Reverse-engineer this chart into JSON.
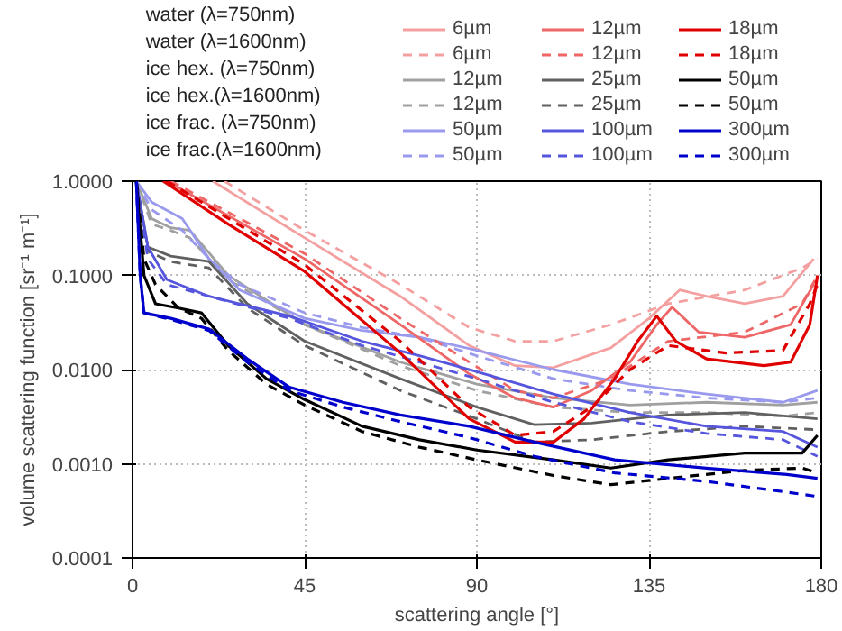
{
  "chart_data": {
    "type": "line",
    "xlabel": "scattering angle [°]",
    "ylabel": "volume scattering function [sr⁻¹ m⁻¹]",
    "log": "y",
    "xlim": [
      0,
      180
    ],
    "ylim": [
      0.0001,
      1.0
    ],
    "xticks": [
      0,
      45,
      90,
      135,
      180
    ],
    "yticks": [
      {
        "value": 0.0001,
        "label": "0.0001"
      },
      {
        "value": 0.001,
        "label": "0.0010"
      },
      {
        "value": 0.01,
        "label": "0.0100"
      },
      {
        "value": 0.1,
        "label": "0.1000"
      },
      {
        "value": 1.0,
        "label": "1.0000"
      }
    ],
    "grid": true,
    "legend": "top",
    "marker": "none",
    "annotations": [
      "water (λ=750nm)",
      "water (λ=1600nm)",
      "ice hex. (λ=750nm)",
      "ice hex.(λ=1600nm)",
      "ice frac. (λ=750nm)",
      "ice frac.(λ=1600nm)"
    ],
    "series": [
      {
        "name": "6µm",
        "color": "#f4a0a0",
        "line_style": "solid",
        "x": [
          21,
          45,
          70,
          88,
          100,
          110,
          125,
          135,
          143,
          150,
          160,
          170,
          178
        ],
        "values": [
          1.0,
          0.25,
          0.06,
          0.018,
          0.011,
          0.0105,
          0.017,
          0.035,
          0.07,
          0.06,
          0.05,
          0.06,
          0.15
        ]
      },
      {
        "name": "6µm",
        "color": "#f4a0a0",
        "line_style": "dashed",
        "x": [
          24,
          45,
          70,
          88,
          100,
          110,
          125,
          140,
          160,
          175,
          179
        ],
        "values": [
          1.0,
          0.3,
          0.08,
          0.028,
          0.02,
          0.02,
          0.03,
          0.05,
          0.07,
          0.12,
          0.15
        ]
      },
      {
        "name": "12µm",
        "color": "#a0a0a0",
        "line_style": "solid",
        "x": [
          1,
          5,
          10,
          15,
          25,
          45,
          70,
          90,
          110,
          130,
          150,
          170,
          179
        ],
        "values": [
          1.0,
          0.4,
          0.32,
          0.3,
          0.1,
          0.03,
          0.012,
          0.007,
          0.005,
          0.0042,
          0.0045,
          0.0042,
          0.0045
        ]
      },
      {
        "name": "12µm",
        "color": "#a0a0a0",
        "line_style": "dashed",
        "x": [
          1,
          5,
          10,
          15,
          25,
          45,
          70,
          90,
          110,
          130,
          150,
          170,
          179
        ],
        "values": [
          1.0,
          0.35,
          0.3,
          0.25,
          0.09,
          0.03,
          0.011,
          0.006,
          0.004,
          0.0035,
          0.0035,
          0.0032,
          0.0035
        ]
      },
      {
        "name": "50µm",
        "color": "#9999ee",
        "line_style": "solid",
        "x": [
          1,
          5,
          13,
          20,
          28,
          45,
          60,
          75,
          90,
          110,
          130,
          150,
          170,
          179
        ],
        "values": [
          1.0,
          0.6,
          0.4,
          0.15,
          0.07,
          0.035,
          0.026,
          0.022,
          0.016,
          0.01,
          0.007,
          0.0055,
          0.0045,
          0.006
        ]
      },
      {
        "name": "50µm",
        "color": "#9999ee",
        "line_style": "dashed",
        "x": [
          1,
          5,
          13,
          20,
          28,
          45,
          60,
          75,
          90,
          110,
          130,
          150,
          170,
          179
        ],
        "values": [
          1.0,
          0.5,
          0.3,
          0.15,
          0.08,
          0.04,
          0.028,
          0.022,
          0.014,
          0.008,
          0.006,
          0.005,
          0.0045,
          0.005
        ]
      },
      {
        "name": "12µm",
        "color": "#ee6666",
        "line_style": "solid",
        "x": [
          9,
          45,
          70,
          88,
          100,
          110,
          120,
          130,
          137,
          141,
          148,
          160,
          172,
          178
        ],
        "values": [
          1.0,
          0.15,
          0.03,
          0.009,
          0.005,
          0.004,
          0.006,
          0.012,
          0.03,
          0.046,
          0.025,
          0.022,
          0.03,
          0.08
        ]
      },
      {
        "name": "12µm",
        "color": "#ee6666",
        "line_style": "dashed",
        "x": [
          10,
          45,
          70,
          88,
          100,
          110,
          125,
          140,
          160,
          175,
          179
        ],
        "values": [
          1.0,
          0.17,
          0.035,
          0.012,
          0.006,
          0.005,
          0.008,
          0.02,
          0.025,
          0.05,
          0.1
        ]
      },
      {
        "name": "25µm",
        "color": "#606060",
        "line_style": "solid",
        "x": [
          1,
          4,
          10,
          20,
          30,
          45,
          70,
          90,
          105,
          120,
          140,
          160,
          179
        ],
        "values": [
          1.0,
          0.2,
          0.16,
          0.14,
          0.05,
          0.02,
          0.008,
          0.004,
          0.0026,
          0.0027,
          0.0033,
          0.0035,
          0.003
        ]
      },
      {
        "name": "25µm",
        "color": "#606060",
        "line_style": "dashed",
        "x": [
          1,
          4,
          10,
          20,
          30,
          45,
          70,
          90,
          105,
          120,
          140,
          160,
          179
        ],
        "values": [
          1.0,
          0.18,
          0.14,
          0.12,
          0.045,
          0.018,
          0.006,
          0.003,
          0.0017,
          0.0018,
          0.0022,
          0.0025,
          0.0023
        ]
      },
      {
        "name": "100µm",
        "color": "#5555dd",
        "line_style": "solid",
        "x": [
          1,
          4,
          9,
          20,
          41,
          60,
          75,
          90,
          110,
          130,
          150,
          170,
          179
        ],
        "values": [
          1.0,
          0.2,
          0.09,
          0.06,
          0.037,
          0.02,
          0.014,
          0.0095,
          0.0055,
          0.0035,
          0.0025,
          0.0022,
          0.0015
        ]
      },
      {
        "name": "100µm",
        "color": "#5555dd",
        "line_style": "dashed",
        "x": [
          1,
          4,
          9,
          20,
          41,
          60,
          75,
          90,
          110,
          130,
          150,
          170,
          179
        ],
        "values": [
          1.0,
          0.15,
          0.08,
          0.06,
          0.035,
          0.018,
          0.012,
          0.008,
          0.0045,
          0.0028,
          0.0021,
          0.0018,
          0.0012
        ]
      },
      {
        "name": "18µm",
        "color": "#e00000",
        "line_style": "solid",
        "x": [
          8,
          25,
          45,
          70,
          88,
          100,
          110,
          118,
          126,
          132,
          137,
          142,
          150,
          165,
          172,
          177,
          179
        ],
        "values": [
          1.0,
          0.35,
          0.11,
          0.015,
          0.003,
          0.0017,
          0.0017,
          0.003,
          0.008,
          0.02,
          0.037,
          0.02,
          0.013,
          0.011,
          0.012,
          0.03,
          0.1
        ]
      },
      {
        "name": "18µm",
        "color": "#e00000",
        "line_style": "dashed",
        "x": [
          9,
          45,
          70,
          88,
          100,
          110,
          120,
          130,
          140,
          155,
          170,
          177,
          179
        ],
        "values": [
          1.0,
          0.13,
          0.02,
          0.004,
          0.002,
          0.0022,
          0.004,
          0.01,
          0.018,
          0.015,
          0.016,
          0.05,
          0.08
        ]
      },
      {
        "name": "50µm",
        "color": "#000000",
        "line_style": "solid",
        "x": [
          1,
          3,
          6,
          12,
          18,
          25,
          35,
          45,
          60,
          75,
          90,
          110,
          125,
          140,
          160,
          175,
          179
        ],
        "values": [
          1.0,
          0.1,
          0.05,
          0.045,
          0.04,
          0.018,
          0.008,
          0.0048,
          0.0025,
          0.0018,
          0.0014,
          0.0011,
          0.0009,
          0.0011,
          0.0013,
          0.0013,
          0.002
        ]
      },
      {
        "name": "50µm",
        "color": "#000000",
        "line_style": "dashed",
        "x": [
          1,
          3,
          6,
          12,
          18,
          25,
          35,
          45,
          60,
          75,
          90,
          110,
          125,
          140,
          160,
          175,
          179
        ],
        "values": [
          1.0,
          0.15,
          0.08,
          0.045,
          0.035,
          0.016,
          0.007,
          0.0042,
          0.0022,
          0.0015,
          0.0011,
          0.00075,
          0.0006,
          0.0007,
          0.00085,
          0.0009,
          0.0008
        ]
      },
      {
        "name": "300µm",
        "color": "#0000cc",
        "line_style": "solid",
        "x": [
          1,
          2,
          3,
          10,
          20,
          30,
          41,
          55,
          70,
          88,
          105,
          126,
          150,
          171,
          179
        ],
        "values": [
          1.0,
          0.1,
          0.04,
          0.035,
          0.027,
          0.013,
          0.0065,
          0.0045,
          0.0033,
          0.0025,
          0.0017,
          0.0011,
          0.0009,
          0.00077,
          0.0007
        ]
      },
      {
        "name": "300µm",
        "color": "#0000cc",
        "line_style": "dashed",
        "x": [
          1,
          2,
          3,
          10,
          20,
          30,
          41,
          55,
          70,
          88,
          105,
          126,
          150,
          171,
          179
        ],
        "values": [
          1.0,
          0.1,
          0.04,
          0.034,
          0.026,
          0.012,
          0.006,
          0.004,
          0.0028,
          0.0019,
          0.0012,
          0.0008,
          0.00065,
          0.0005,
          0.00045
        ]
      }
    ]
  }
}
